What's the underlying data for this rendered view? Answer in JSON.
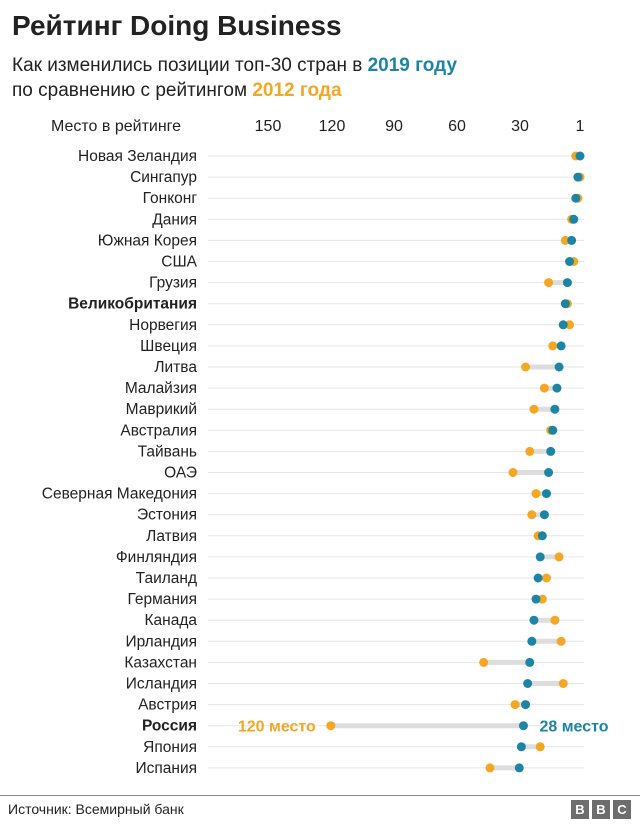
{
  "header": {
    "title": "Рейтинг Doing Business",
    "subtitle_prefix": "Как изменились позиции топ-30 стран в ",
    "year_2019": "2019 году",
    "subtitle_mid": "по сравнению с рейтингом ",
    "year_2012": "2012 года"
  },
  "footer": {
    "source": "Источник: Всемирный банк",
    "logo_letters": [
      "B",
      "B",
      "C"
    ]
  },
  "colors": {
    "rank_2019": "#1c84a4",
    "rank_2012": "#f5a623",
    "connector": "#dddddd",
    "gridline": "#e6e6e6"
  },
  "chart_data": {
    "type": "scatter",
    "subtype": "dumbbell",
    "x_axis_title": "Место в рейтинге",
    "x_ticks": [
      150,
      120,
      90,
      60,
      30,
      1
    ],
    "x_range": [
      1,
      150
    ],
    "x_reversed": true,
    "series": [
      {
        "name": "2019 году",
        "key": "rank_2019"
      },
      {
        "name": "2012 года",
        "key": "rank_2012"
      }
    ],
    "countries": [
      {
        "name": "Новая Зеландия",
        "rank_2019": 1,
        "rank_2012": 3,
        "bold": false
      },
      {
        "name": "Сингапур",
        "rank_2019": 2,
        "rank_2012": 1,
        "bold": false
      },
      {
        "name": "Гонконг",
        "rank_2019": 3,
        "rank_2012": 2,
        "bold": false
      },
      {
        "name": "Дания",
        "rank_2019": 4,
        "rank_2012": 5,
        "bold": false
      },
      {
        "name": "Южная Корея",
        "rank_2019": 5,
        "rank_2012": 8,
        "bold": false
      },
      {
        "name": "США",
        "rank_2019": 6,
        "rank_2012": 4,
        "bold": false
      },
      {
        "name": "Грузия",
        "rank_2019": 7,
        "rank_2012": 16,
        "bold": false
      },
      {
        "name": "Великобритания",
        "rank_2019": 8,
        "rank_2012": 7,
        "bold": true
      },
      {
        "name": "Норвегия",
        "rank_2019": 9,
        "rank_2012": 6,
        "bold": false
      },
      {
        "name": "Швеция",
        "rank_2019": 10,
        "rank_2012": 14,
        "bold": false
      },
      {
        "name": "Литва",
        "rank_2019": 11,
        "rank_2012": 27,
        "bold": false
      },
      {
        "name": "Малайзия",
        "rank_2019": 12,
        "rank_2012": 18,
        "bold": false
      },
      {
        "name": "Маврикий",
        "rank_2019": 13,
        "rank_2012": 23,
        "bold": false
      },
      {
        "name": "Австралия",
        "rank_2019": 14,
        "rank_2012": 15,
        "bold": false
      },
      {
        "name": "Тайвань",
        "rank_2019": 15,
        "rank_2012": 25,
        "bold": false
      },
      {
        "name": "ОАЭ",
        "rank_2019": 16,
        "rank_2012": 33,
        "bold": false
      },
      {
        "name": "Северная Македония",
        "rank_2019": 17,
        "rank_2012": 22,
        "bold": false
      },
      {
        "name": "Эстония",
        "rank_2019": 18,
        "rank_2012": 24,
        "bold": false
      },
      {
        "name": "Латвия",
        "rank_2019": 19,
        "rank_2012": 21,
        "bold": false
      },
      {
        "name": "Финляндия",
        "rank_2019": 20,
        "rank_2012": 11,
        "bold": false
      },
      {
        "name": "Таиланд",
        "rank_2019": 21,
        "rank_2012": 17,
        "bold": false
      },
      {
        "name": "Германия",
        "rank_2019": 22,
        "rank_2012": 19,
        "bold": false
      },
      {
        "name": "Канада",
        "rank_2019": 23,
        "rank_2012": 13,
        "bold": false
      },
      {
        "name": "Ирландия",
        "rank_2019": 24,
        "rank_2012": 10,
        "bold": false
      },
      {
        "name": "Казахстан",
        "rank_2019": 25,
        "rank_2012": 47,
        "bold": false
      },
      {
        "name": "Исландия",
        "rank_2019": 26,
        "rank_2012": 9,
        "bold": false
      },
      {
        "name": "Австрия",
        "rank_2019": 27,
        "rank_2012": 32,
        "bold": false
      },
      {
        "name": "Россия",
        "rank_2019": 28,
        "rank_2012": 120,
        "bold": true
      },
      {
        "name": "Япония",
        "rank_2019": 29,
        "rank_2012": 20,
        "bold": false
      },
      {
        "name": "Испания",
        "rank_2019": 30,
        "rank_2012": 44,
        "bold": false
      }
    ],
    "annotations": [
      {
        "country": "Россия",
        "series": "rank_2012",
        "text": "120 место"
      },
      {
        "country": "Россия",
        "series": "rank_2019",
        "text": "28 место"
      }
    ]
  }
}
